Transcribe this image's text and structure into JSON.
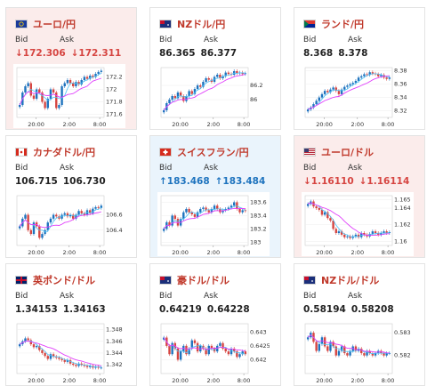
{
  "labels": {
    "bid": "Bid",
    "ask": "Ask"
  },
  "colors": {
    "up": "#1e73be",
    "down": "#d64541",
    "ma": "#e040fb",
    "ma2": "#4fc3f7",
    "bull": "#1e73be",
    "bear": "#d64541"
  },
  "cards": [
    {
      "id": "eurjpy",
      "name": "ユーロ/円",
      "flag": "eu-icon",
      "state": "down",
      "bid": "↓172.306",
      "ask": "↓172.311",
      "yticks": [
        "172.2",
        "172",
        "171.8",
        "171.6"
      ],
      "ylim": [
        171.55,
        172.35
      ],
      "xticks": [
        "20:00",
        "2:00",
        "8:00"
      ]
    },
    {
      "id": "nzdjpy",
      "name": "NZドル/円",
      "flag": "nz-icon",
      "state": "flat",
      "bid": "86.365",
      "ask": "86.377",
      "yticks": [
        "86.2",
        "86"
      ],
      "ylim": [
        85.75,
        86.45
      ],
      "xticks": [
        "20:00",
        "2:00",
        "8:00"
      ]
    },
    {
      "id": "zarjpy",
      "name": "ランド/円",
      "flag": "za-icon",
      "state": "flat",
      "bid": "8.368",
      "ask": "8.378",
      "yticks": [
        "8.38",
        "8.36",
        "8.34",
        "8.32"
      ],
      "ylim": [
        8.31,
        8.385
      ],
      "xticks": [
        "20:00",
        "2:00",
        "8:00"
      ]
    },
    {
      "id": "cadjpy",
      "name": "カナダドル/円",
      "flag": "ca-icon",
      "state": "flat",
      "bid": "106.715",
      "ask": "106.730",
      "yticks": [
        "106.6",
        "106.4"
      ],
      "ylim": [
        106.2,
        106.85
      ],
      "xticks": [
        "20:00",
        "2:00",
        "8:00"
      ]
    },
    {
      "id": "chfjpy",
      "name": "スイスフラン/円",
      "flag": "ch-icon",
      "state": "up",
      "bid": "↑183.468",
      "ask": "↑183.484",
      "yticks": [
        "183.6",
        "183.4",
        "183.2",
        "183"
      ],
      "ylim": [
        182.95,
        183.7
      ],
      "xticks": [
        "20:00",
        "2:00",
        "8:00"
      ]
    },
    {
      "id": "eurusd",
      "name": "ユーロ/ドル",
      "flag": "us-icon",
      "state": "down",
      "bid": "↓1.16110",
      "ask": "↓1.16114",
      "yticks": [
        "1.165",
        "1.164",
        "1.162",
        "1.16"
      ],
      "ylim": [
        1.1595,
        1.1655
      ],
      "xticks": [
        "20:00",
        "2:00",
        "8:00"
      ]
    },
    {
      "id": "gbpusd",
      "name": "英ポンド/ドル",
      "flag": "gb-icon",
      "state": "flat",
      "bid": "1.34153",
      "ask": "1.34163",
      "yticks": [
        "1.348",
        "1.346",
        "1.344",
        "1.342"
      ],
      "ylim": [
        1.3405,
        1.349
      ],
      "xticks": [
        "20:00",
        "2:00",
        "8:00"
      ]
    },
    {
      "id": "audusd",
      "name": "豪ドル/ドル",
      "flag": "au-icon",
      "state": "flat",
      "bid": "0.64219",
      "ask": "0.64228",
      "yticks": [
        "0.643",
        "0.6425",
        "0.642"
      ],
      "ylim": [
        0.6415,
        0.6433
      ],
      "xticks": [
        "20:00",
        "2:00",
        "8:00"
      ]
    },
    {
      "id": "nzdusd",
      "name": "NZドル/ドル",
      "flag": "nz-icon",
      "state": "flat",
      "bid": "0.58194",
      "ask": "0.58208",
      "yticks": [
        "0.583",
        "0.582"
      ],
      "ylim": [
        0.5812,
        0.5834
      ],
      "xticks": [
        "20:00",
        "2:00",
        "8:00"
      ]
    }
  ],
  "chart_data": [
    {
      "type": "candlestick",
      "title": "ユーロ/円",
      "ylim": [
        171.55,
        172.35
      ],
      "closes": [
        171.75,
        171.95,
        172.05,
        172.1,
        171.9,
        171.85,
        172.0,
        171.95,
        171.8,
        171.7,
        171.85,
        172.0,
        171.95,
        171.7,
        171.75,
        172.05,
        172.1,
        172.15,
        172.1,
        172.05,
        172.12,
        172.08,
        172.15,
        172.2,
        172.17,
        172.22,
        172.2,
        172.25,
        172.28,
        172.3
      ]
    },
    {
      "type": "candlestick",
      "title": "NZドル/円",
      "ylim": [
        85.75,
        86.45
      ],
      "closes": [
        85.85,
        85.95,
        86.0,
        86.05,
        86.02,
        86.1,
        86.05,
        85.98,
        86.05,
        86.12,
        86.08,
        86.15,
        86.2,
        86.18,
        86.25,
        86.3,
        86.28,
        86.25,
        86.32,
        86.35,
        86.3,
        86.33,
        86.38,
        86.36,
        86.35,
        86.4,
        86.37,
        86.38,
        86.36,
        86.37
      ]
    },
    {
      "type": "candlestick",
      "title": "ランド/円",
      "ylim": [
        8.31,
        8.385
      ],
      "closes": [
        8.322,
        8.325,
        8.33,
        8.335,
        8.34,
        8.345,
        8.35,
        8.348,
        8.352,
        8.355,
        8.35,
        8.345,
        8.352,
        8.356,
        8.358,
        8.36,
        8.362,
        8.365,
        8.37,
        8.372,
        8.375,
        8.374,
        8.378,
        8.376,
        8.375,
        8.372,
        8.374,
        8.37,
        8.368,
        8.37
      ]
    },
    {
      "type": "candlestick",
      "title": "カナダドル/円",
      "ylim": [
        106.2,
        106.85
      ],
      "closes": [
        106.45,
        106.55,
        106.6,
        106.4,
        106.35,
        106.5,
        106.45,
        106.3,
        106.35,
        106.4,
        106.5,
        106.55,
        106.6,
        106.58,
        106.55,
        106.6,
        106.62,
        106.58,
        106.6,
        106.55,
        106.6,
        106.65,
        106.62,
        106.6,
        106.66,
        106.62,
        106.68,
        106.7,
        106.69,
        106.72
      ]
    },
    {
      "type": "candlestick",
      "title": "スイスフラン/円",
      "ylim": [
        182.95,
        183.7
      ],
      "closes": [
        183.2,
        183.3,
        183.25,
        183.4,
        183.35,
        183.25,
        183.35,
        183.45,
        183.5,
        183.45,
        183.42,
        183.38,
        183.45,
        183.5,
        183.52,
        183.48,
        183.45,
        183.5,
        183.55,
        183.5,
        183.45,
        183.48,
        183.5,
        183.52,
        183.55,
        183.6,
        183.5,
        183.45,
        183.48,
        183.47
      ]
    },
    {
      "type": "candlestick",
      "title": "ユーロ/ドル",
      "ylim": [
        1.1595,
        1.1655
      ],
      "closes": [
        1.1645,
        1.1648,
        1.1642,
        1.164,
        1.1638,
        1.1632,
        1.1635,
        1.1628,
        1.1625,
        1.1615,
        1.161,
        1.1612,
        1.1608,
        1.1605,
        1.1606,
        1.1604,
        1.1606,
        1.1608,
        1.1605,
        1.161,
        1.1608,
        1.1606,
        1.1609,
        1.1612,
        1.161,
        1.1608,
        1.161,
        1.1612,
        1.161,
        1.1611
      ]
    },
    {
      "type": "candlestick",
      "title": "英ポンド/ドル",
      "ylim": [
        1.3405,
        1.349
      ],
      "closes": [
        1.3455,
        1.346,
        1.3465,
        1.3462,
        1.3455,
        1.345,
        1.3452,
        1.3445,
        1.344,
        1.3435,
        1.343,
        1.3438,
        1.3434,
        1.3432,
        1.343,
        1.3428,
        1.3425,
        1.3428,
        1.3422,
        1.342,
        1.3418,
        1.3422,
        1.342,
        1.3418,
        1.3416,
        1.3418,
        1.3415,
        1.3417,
        1.3415,
        1.3415
      ]
    },
    {
      "type": "candlestick",
      "title": "豪ドル/ドル",
      "ylim": [
        0.6415,
        0.6433
      ],
      "closes": [
        0.6428,
        0.6425,
        0.6422,
        0.6426,
        0.6424,
        0.642,
        0.6423,
        0.6425,
        0.6422,
        0.6424,
        0.6427,
        0.6426,
        0.6423,
        0.6425,
        0.6424,
        0.6422,
        0.6425,
        0.6424,
        0.6423,
        0.6425,
        0.6426,
        0.6424,
        0.6423,
        0.6422,
        0.6424,
        0.6423,
        0.6421,
        0.6422,
        0.6423,
        0.6422
      ]
    },
    {
      "type": "candlestick",
      "title": "NZドル/ドル",
      "ylim": [
        0.5812,
        0.5834
      ],
      "closes": [
        0.5828,
        0.583,
        0.5826,
        0.5822,
        0.5825,
        0.5828,
        0.5824,
        0.5822,
        0.5826,
        0.5824,
        0.582,
        0.5822,
        0.5824,
        0.5821,
        0.582,
        0.5822,
        0.5824,
        0.5822,
        0.5823,
        0.5821,
        0.582,
        0.5822,
        0.5821,
        0.582,
        0.5821,
        0.5822,
        0.5821,
        0.582,
        0.5821,
        0.5821
      ]
    }
  ]
}
